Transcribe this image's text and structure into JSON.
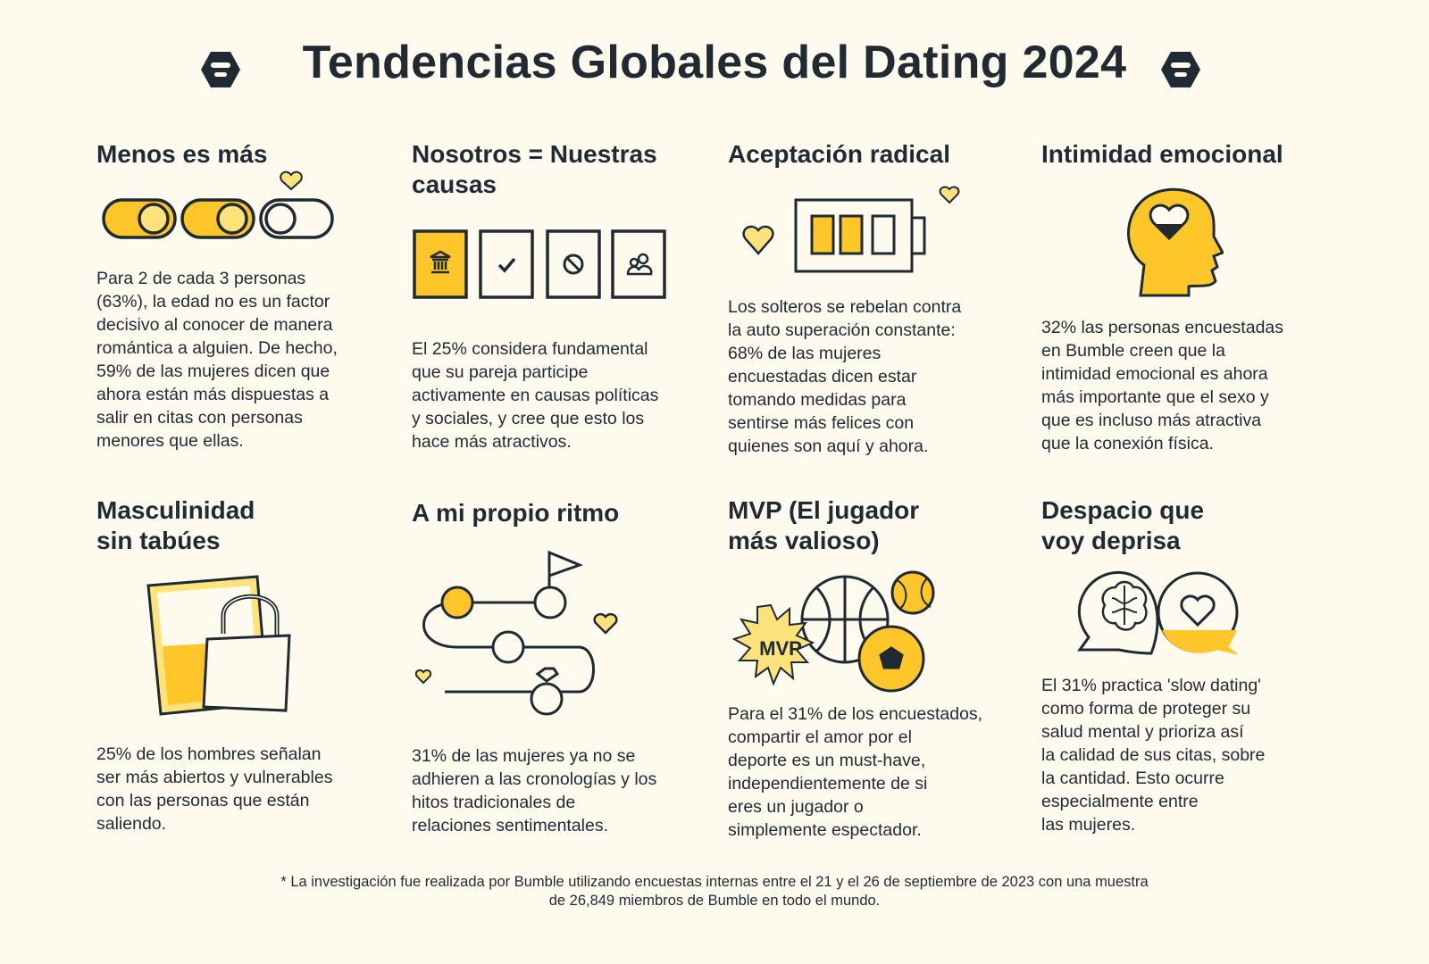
{
  "header": {
    "title": "Tendencias Globales del Dating 2024",
    "logo": "bumble-hexagon-logo"
  },
  "colors": {
    "background": "#fefaee",
    "accent": "#ffc629",
    "ink": "#1f2a33"
  },
  "cards": [
    {
      "title": "Menos es más",
      "icon": "toggles-icon",
      "text": "Para 2 de cada 3 personas\n(63%), la edad no es un factor\ndecisivo al conocer de manera\nromántica a alguien. De hecho,\n59% de las mujeres dicen que\nahora están más dispuestas a\nsalir en citas con personas\nmenores que ellas."
    },
    {
      "title": "Nosotros = Nuestras\ncausas",
      "icon": "causes-cards-icon",
      "text": "El 25% considera fundamental\nque su pareja participe\nactivamente en causas políticas\ny sociales, y cree que esto los\nhace más atractivos."
    },
    {
      "title": "Aceptación radical",
      "icon": "battery-icon",
      "text": "Los solteros se rebelan contra\nla auto superación constante:\n68% de las mujeres\nencuestadas dicen estar\ntomando medidas para\nsentirse más felices con\nquienes son aquí y ahora."
    },
    {
      "title": "Intimidad emocional",
      "icon": "head-heart-icon",
      "text": "32% las personas encuestadas\nen Bumble creen que la\nintimidad emocional es ahora\nmás importante que el sexo y\nque es incluso más atractiva\nque la conexión física."
    },
    {
      "title": "Masculinidad\nsin tabúes",
      "icon": "open-padlock-icon",
      "text": "25% de los hombres señalan\nser más abiertos y vulnerables\ncon las personas que están\nsaliendo."
    },
    {
      "title": "A mi propio ritmo",
      "icon": "winding-path-icon",
      "text": "31% de las mujeres ya no se\nadhieren a las cronologías y los\nhitos tradicionales de\nrelaciones sentimentales."
    },
    {
      "title": "MVP (El jugador\nmás valioso)",
      "icon": "sports-balls-icon",
      "badge": "MVP",
      "text": "Para el 31% de los encuestados,\ncompartir el amor por el\ndeporte es un must-have,\nindependientemente de si\neres un jugador o\nsimplemente espectador."
    },
    {
      "title": "Despacio que\nvoy deprisa",
      "icon": "brain-heart-bubbles-icon",
      "text": "El 31% practica 'slow dating'\ncomo forma de proteger su\nsalud mental y prioriza así\nla calidad de sus citas, sobre\nla cantidad. Esto ocurre\nespecialmente entre\nlas mujeres."
    }
  ],
  "footer": "* La investigación fue realizada por Bumble utilizando encuestas internas entre el 21 y el 26 de septiembre de 2023 con una muestra\nde 26,849 miembros de Bumble en todo el mundo."
}
